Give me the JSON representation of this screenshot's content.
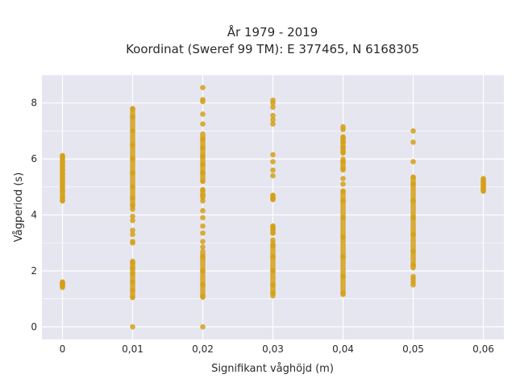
{
  "chart_data": {
    "type": "scatter",
    "title_line1": "År 1979 - 2019",
    "title_line2": "Koordinat (Sweref 99 TM): E 377465, N 6168305",
    "xlabel": "Signifikant våghöjd (m)",
    "ylabel": "Vågperiod (s)",
    "x_categories": [
      0,
      0.01,
      0.02,
      0.03,
      0.04,
      0.05,
      0.06
    ],
    "x_tick_labels": [
      "0",
      "0,01",
      "0,02",
      "0,03",
      "0,04",
      "0,05",
      "0,06"
    ],
    "y_ticks": [
      0,
      2,
      4,
      6,
      8
    ],
    "ylim": [
      -0.45,
      9.0
    ],
    "grid": true,
    "legend": "none",
    "colors": {
      "marker": "#d4a017",
      "plot_bg": "#e6e6f0",
      "grid": "#ffffff"
    },
    "series": [
      {
        "x": 0,
        "ranges": [
          [
            1.4,
            1.6
          ],
          [
            4.5,
            6.1
          ]
        ],
        "points": [
          1.45,
          1.5,
          1.55,
          1.6,
          4.5,
          4.65,
          4.85,
          5.0,
          5.15,
          5.3,
          5.45,
          5.6,
          5.75,
          5.9,
          6.05,
          6.12
        ]
      },
      {
        "x": 0.01,
        "ranges": [
          [
            1.05,
            2.35
          ],
          [
            4.3,
            7.8
          ]
        ],
        "points": [
          0.0,
          1.05,
          1.3,
          1.6,
          1.9,
          2.1,
          2.3,
          3.0,
          3.05,
          3.3,
          3.45,
          3.8,
          3.95,
          4.2,
          4.35,
          4.6,
          5.0,
          5.5,
          6.0,
          6.5,
          7.0,
          7.5,
          7.8
        ]
      },
      {
        "x": 0.02,
        "ranges": [
          [
            1.05,
            2.7
          ],
          [
            4.6,
            4.9
          ],
          [
            5.2,
            6.9
          ]
        ],
        "points": [
          0.0,
          1.1,
          1.5,
          2.0,
          2.5,
          2.85,
          3.05,
          3.35,
          3.6,
          3.9,
          4.15,
          4.5,
          4.7,
          4.9,
          5.2,
          5.5,
          5.8,
          6.1,
          6.4,
          6.7,
          7.25,
          7.6,
          8.05,
          8.12,
          8.55
        ]
      },
      {
        "x": 0.03,
        "ranges": [
          [
            1.1,
            3.0
          ],
          [
            3.35,
            3.6
          ],
          [
            4.55,
            4.7
          ]
        ],
        "points": [
          1.2,
          1.5,
          2.0,
          2.5,
          2.9,
          3.1,
          3.35,
          3.5,
          3.6,
          4.55,
          4.6,
          4.7,
          5.4,
          5.6,
          5.9,
          6.15,
          7.25,
          7.4,
          7.55,
          7.85,
          8.0,
          8.1
        ]
      },
      {
        "x": 0.04,
        "ranges": [
          [
            1.15,
            4.85
          ],
          [
            5.6,
            6.0
          ],
          [
            6.2,
            6.8
          ]
        ],
        "points": [
          1.2,
          1.8,
          2.5,
          3.2,
          3.9,
          4.5,
          4.85,
          5.1,
          5.3,
          5.65,
          5.9,
          6.25,
          6.4,
          6.6,
          6.75,
          7.05,
          7.15
        ]
      },
      {
        "x": 0.05,
        "ranges": [
          [
            2.1,
            5.35
          ]
        ],
        "points": [
          1.5,
          1.6,
          1.7,
          1.8,
          2.2,
          2.7,
          3.3,
          3.9,
          4.5,
          5.1,
          5.35,
          5.9,
          6.6,
          7.0
        ]
      },
      {
        "x": 0.06,
        "ranges": [
          [
            4.85,
            5.25
          ]
        ],
        "points": [
          4.85,
          4.95,
          5.05,
          5.15,
          5.25,
          5.3
        ]
      }
    ]
  }
}
